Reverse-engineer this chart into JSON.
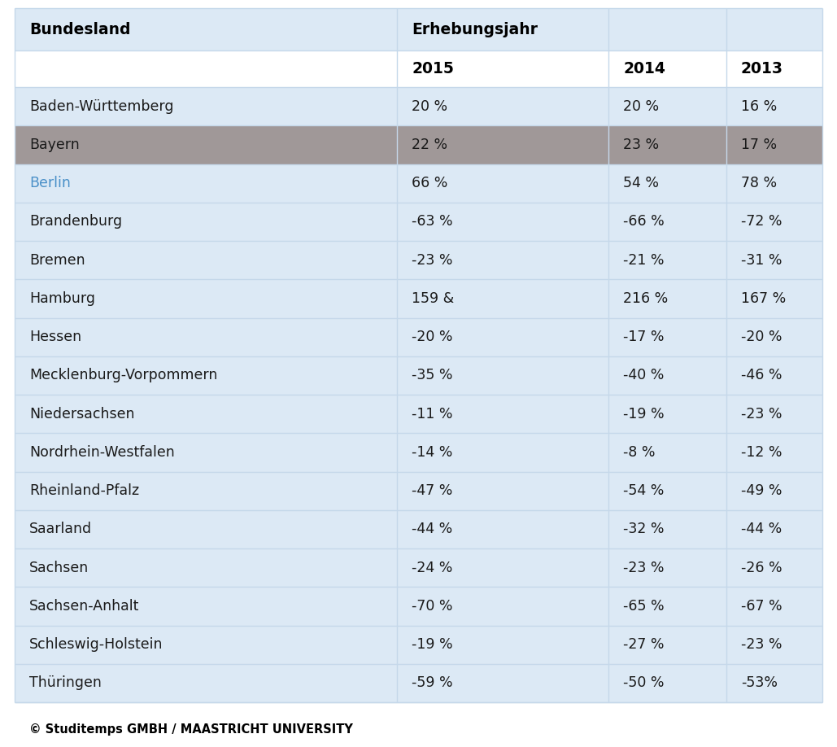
{
  "col_headers_row1": [
    "Bundesland",
    "Erhebungsjahr",
    "",
    ""
  ],
  "col_headers_row2": [
    "",
    "2015",
    "2014",
    "2013"
  ],
  "rows": [
    {
      "land": "Baden-Württemberg",
      "v2015": "20 %",
      "v2014": "20 %",
      "v2013": "16 %",
      "highlight": "light",
      "berlin": false
    },
    {
      "land": "Bayern",
      "v2015": "22 %",
      "v2014": "23 %",
      "v2013": "17 %",
      "highlight": "gray",
      "berlin": false
    },
    {
      "land": "Berlin",
      "v2015": "66 %",
      "v2014": "54 %",
      "v2013": "78 %",
      "highlight": "light",
      "berlin": true
    },
    {
      "land": "Brandenburg",
      "v2015": "-63 %",
      "v2014": "-66 %",
      "v2013": "-72 %",
      "highlight": "light",
      "berlin": false
    },
    {
      "land": "Bremen",
      "v2015": "-23 %",
      "v2014": "-21 %",
      "v2013": "-31 %",
      "highlight": "light",
      "berlin": false
    },
    {
      "land": "Hamburg",
      "v2015": "159 &",
      "v2014": "216 %",
      "v2013": "167 %",
      "highlight": "light",
      "berlin": false
    },
    {
      "land": "Hessen",
      "v2015": "-20 %",
      "v2014": "-17 %",
      "v2013": "-20 %",
      "highlight": "light",
      "berlin": false
    },
    {
      "land": "Mecklenburg-Vorpommern",
      "v2015": "-35 %",
      "v2014": "-40 %",
      "v2013": "-46 %",
      "highlight": "light",
      "berlin": false
    },
    {
      "land": "Niedersachsen",
      "v2015": "-11 %",
      "v2014": "-19 %",
      "v2013": "-23 %",
      "highlight": "light",
      "berlin": false
    },
    {
      "land": "Nordrhein-Westfalen",
      "v2015": "-14 %",
      "v2014": "-8 %",
      "v2013": "-12 %",
      "highlight": "light",
      "berlin": false
    },
    {
      "land": "Rheinland-Pfalz",
      "v2015": "-47 %",
      "v2014": "-54 %",
      "v2013": "-49 %",
      "highlight": "light",
      "berlin": false
    },
    {
      "land": "Saarland",
      "v2015": "-44 %",
      "v2014": "-32 %",
      "v2013": "-44 %",
      "highlight": "light",
      "berlin": false
    },
    {
      "land": "Sachsen",
      "v2015": "-24 %",
      "v2014": "-23 %",
      "v2013": "-26 %",
      "highlight": "light",
      "berlin": false
    },
    {
      "land": "Sachsen-Anhalt",
      "v2015": "-70 %",
      "v2014": "-65 %",
      "v2013": "-67 %",
      "highlight": "light",
      "berlin": false
    },
    {
      "land": "Schleswig-Holstein",
      "v2015": "-19 %",
      "v2014": "-27 %",
      "v2013": "-23 %",
      "highlight": "light",
      "berlin": false
    },
    {
      "land": "Thüringen",
      "v2015": "-59 %",
      "v2014": "-50 %",
      "v2013": "-53%",
      "highlight": "light",
      "berlin": false
    }
  ],
  "footer": "© Studitemps GMBH / MAASTRICHT UNIVERSITY",
  "color_header_bg": "#dce9f5",
  "color_light_bg": "#dce9f5",
  "color_gray_bg": "#a09898",
  "color_white_bg": "#ffffff",
  "color_berlin_text": "#4a90c8",
  "color_normal_text": "#1a1a1a",
  "color_header_text": "#000000",
  "border_color": "#c5d8ea",
  "fig_width": 10.29,
  "fig_height": 9.18,
  "dpi": 100
}
